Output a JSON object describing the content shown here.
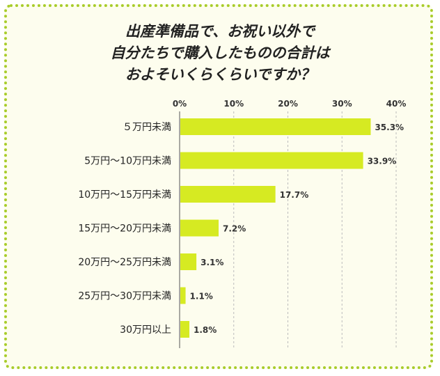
{
  "chart_data": {
    "type": "bar",
    "orientation": "horizontal",
    "title_lines": [
      "出産準備品で、お祝い以外で",
      "自分たちで購入したものの合計は",
      "およそいくらくらいですか？"
    ],
    "categories": [
      "５万円未満",
      "5万円～10万円未満",
      "10万円～15万円未満",
      "15万円～20万円未満",
      "20万円～25万円未満",
      "25万円～30万円未満",
      "30万円以上"
    ],
    "values": [
      35.3,
      33.9,
      17.7,
      7.2,
      3.1,
      1.1,
      1.8
    ],
    "value_labels": [
      "35.3%",
      "33.9%",
      "17.7%",
      "7.2%",
      "3.1%",
      "1.1%",
      "1.8%"
    ],
    "ticks": [
      0,
      10,
      20,
      30,
      40
    ],
    "tick_labels": [
      "0%",
      "10%",
      "20%",
      "30%",
      "40%"
    ],
    "xlim": [
      0,
      40
    ],
    "grid": true,
    "legend": "none",
    "bar_color": "#d6ea22",
    "grid_color": "#bbbbbb",
    "border_color": "#a8cc2a",
    "background_color": "#fdfdee"
  }
}
